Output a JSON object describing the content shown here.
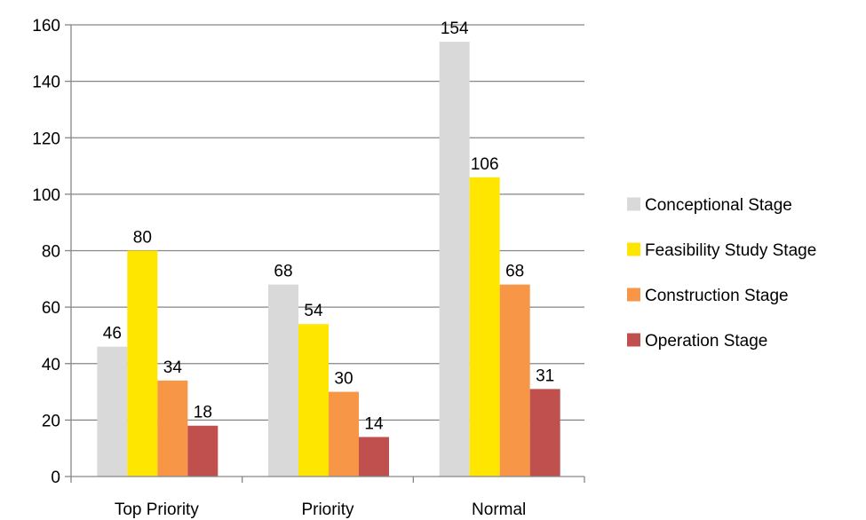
{
  "chart_data": {
    "type": "bar",
    "categories": [
      "Top Priority",
      "Priority",
      "Normal"
    ],
    "series": [
      {
        "name": "Conceptional Stage",
        "values": [
          46,
          68,
          154
        ],
        "color": "#d9d9d9"
      },
      {
        "name": "Feasibility Study Stage",
        "values": [
          80,
          54,
          106
        ],
        "color": "#ffe600"
      },
      {
        "name": "Construction Stage",
        "values": [
          34,
          30,
          68
        ],
        "color": "#f79646"
      },
      {
        "name": "Operation Stage",
        "values": [
          18,
          14,
          31
        ],
        "color": "#c0504d"
      }
    ],
    "ylim": [
      0,
      160
    ],
    "yticks": [
      0,
      20,
      40,
      60,
      80,
      100,
      120,
      140,
      160
    ],
    "grid": true,
    "legend_position": "right"
  }
}
